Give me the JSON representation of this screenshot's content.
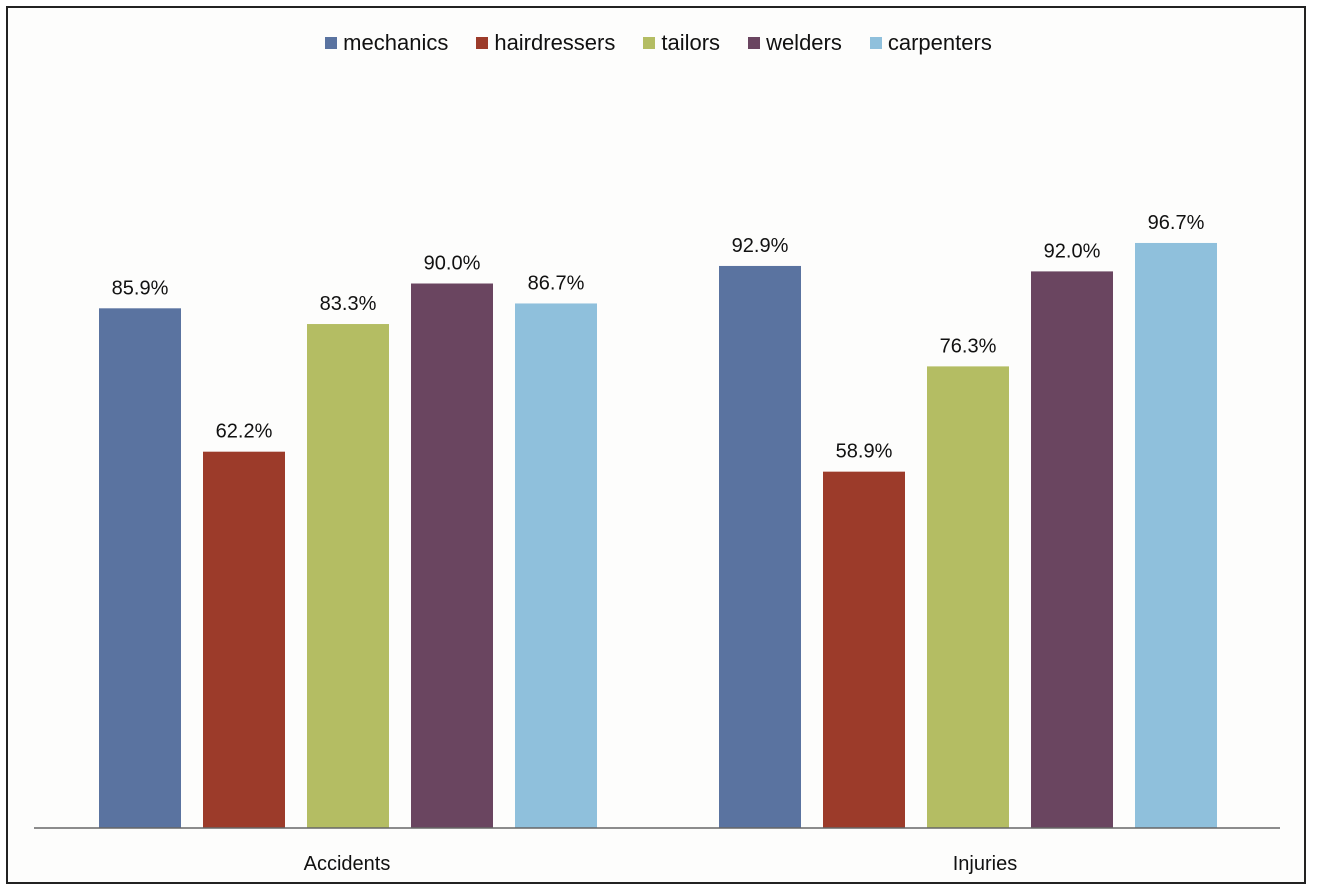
{
  "chart_data": {
    "type": "bar",
    "title": "",
    "xlabel": "",
    "ylabel": "",
    "categories": [
      "Accidents",
      "Injuries"
    ],
    "series": [
      {
        "name": "mechanics",
        "color": "#5a73a0",
        "values": [
          85.9,
          92.9
        ],
        "labels": [
          "85.9%",
          "92.9%"
        ]
      },
      {
        "name": "hairdressers",
        "color": "#9c3b2a",
        "values": [
          62.2,
          58.9
        ],
        "labels": [
          "62.2%",
          "58.9%"
        ]
      },
      {
        "name": "tailors",
        "color": "#b4bd63",
        "values": [
          83.3,
          76.3
        ],
        "labels": [
          "83.3%",
          "76.3%"
        ]
      },
      {
        "name": "welders",
        "color": "#6a4560",
        "values": [
          90.0,
          92.0
        ],
        "labels": [
          "90.0%",
          "92.0%"
        ]
      },
      {
        "name": "carpenters",
        "color": "#8fc0dc",
        "values": [
          86.7,
          96.7
        ],
        "labels": [
          "86.7%",
          "96.7%"
        ]
      }
    ],
    "ylim": [
      0,
      100
    ],
    "grid": false,
    "legend_position": "top"
  }
}
